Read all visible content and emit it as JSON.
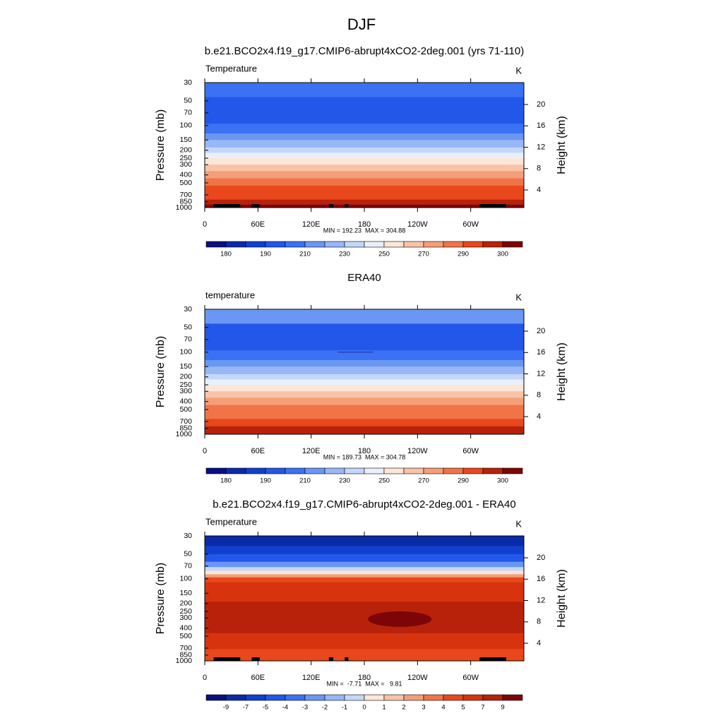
{
  "title": "DJF",
  "chart_data": [
    {
      "type": "contour",
      "title": "b.e21.BCO2x4.f19_g17.CMIP6-abrupt4xCO2-2deg.001 (yrs 71-110)",
      "left_string": "Temperature",
      "right_string": "K",
      "ylabel": "Pressure (mb)",
      "y2label": "Height (km)",
      "ylog": true,
      "ylim": [
        30,
        1000
      ],
      "yticks": [
        30,
        50,
        70,
        100,
        150,
        200,
        250,
        300,
        400,
        500,
        700,
        850,
        1000
      ],
      "y2lim": [
        0.7,
        24.1
      ],
      "y2ticks": [
        4,
        8,
        12,
        16,
        20
      ],
      "xlim": [
        0,
        360
      ],
      "xticks": [
        0,
        {
          "value": 60,
          "label": "60E"
        },
        {
          "value": 120,
          "label": "120E"
        },
        180,
        {
          "value": 240,
          "label": "120W"
        },
        {
          "value": 300,
          "label": "60W"
        }
      ],
      "stats": "MIN = 192.23  MAX = 304.88",
      "colorbar": {
        "ticks": [
          180,
          190,
          210,
          230,
          250,
          270,
          290,
          300
        ],
        "colors": [
          "#0a0f80",
          "#0b2aa8",
          "#1040cf",
          "#2257ea",
          "#3b72f3",
          "#6b97f4",
          "#98b7f6",
          "#c4d7f9",
          "#eaf0fb",
          "#fbe6d8",
          "#f8c3a6",
          "#f49f79",
          "#f07448",
          "#e9481c",
          "#b8220b",
          "#7d0505"
        ]
      }
    },
    {
      "type": "contour",
      "title": "ERA40",
      "left_string": "temperature",
      "right_string": "K",
      "ylabel": "Pressure (mb)",
      "y2label": "Height (km)",
      "ylog": true,
      "ylim": [
        30,
        1000
      ],
      "yticks": [
        30,
        50,
        70,
        100,
        150,
        200,
        250,
        300,
        400,
        500,
        700,
        850,
        1000
      ],
      "y2lim": [
        0.7,
        24.1
      ],
      "y2ticks": [
        4,
        8,
        12,
        16,
        20
      ],
      "xlim": [
        0,
        360
      ],
      "xticks": [
        0,
        {
          "value": 60,
          "label": "60E"
        },
        {
          "value": 120,
          "label": "120E"
        },
        180,
        {
          "value": 240,
          "label": "120W"
        },
        {
          "value": 300,
          "label": "60W"
        }
      ],
      "stats": "MIN = 189.73  MAX = 304.78",
      "colorbar": {
        "ticks": [
          180,
          190,
          210,
          230,
          250,
          270,
          290,
          300
        ],
        "colors": [
          "#0a0f80",
          "#0b2aa8",
          "#1040cf",
          "#2257ea",
          "#3b72f3",
          "#6b97f4",
          "#98b7f6",
          "#c4d7f9",
          "#eaf0fb",
          "#fbe6d8",
          "#f8c3a6",
          "#f49f79",
          "#f07448",
          "#e9481c",
          "#b8220b",
          "#7d0505"
        ]
      }
    },
    {
      "type": "contour",
      "title": "b.e21.BCO2x4.f19_g17.CMIP6-abrupt4xCO2-2deg.001 - ERA40",
      "left_string": "Temperature",
      "right_string": "K",
      "ylabel": "Pressure (mb)",
      "y2label": "Height (km)",
      "ylog": true,
      "ylim": [
        30,
        1000
      ],
      "yticks": [
        30,
        50,
        70,
        100,
        150,
        200,
        250,
        300,
        400,
        500,
        700,
        850,
        1000
      ],
      "y2lim": [
        0.7,
        24.1
      ],
      "y2ticks": [
        4,
        8,
        12,
        16,
        20
      ],
      "xlim": [
        0,
        360
      ],
      "xticks": [
        0,
        {
          "value": 60,
          "label": "60E"
        },
        {
          "value": 120,
          "label": "120E"
        },
        180,
        {
          "value": 240,
          "label": "120W"
        },
        {
          "value": 300,
          "label": "60W"
        }
      ],
      "stats": "MIN =  -7.71  MAX =   9.81",
      "colorbar": {
        "ticks": [
          -9,
          -7,
          -5,
          -4,
          -3,
          -2,
          -1,
          0,
          1,
          2,
          3,
          4,
          5,
          7,
          9
        ],
        "colors": [
          "#0a0f80",
          "#0b2aa8",
          "#1040cf",
          "#2257ea",
          "#3b72f3",
          "#6b97f4",
          "#98b7f6",
          "#c4d7f9",
          "#fbe6d8",
          "#f8c3a6",
          "#f49f79",
          "#f07448",
          "#e9481c",
          "#d8330f",
          "#b8220b",
          "#7d0505"
        ]
      }
    }
  ]
}
